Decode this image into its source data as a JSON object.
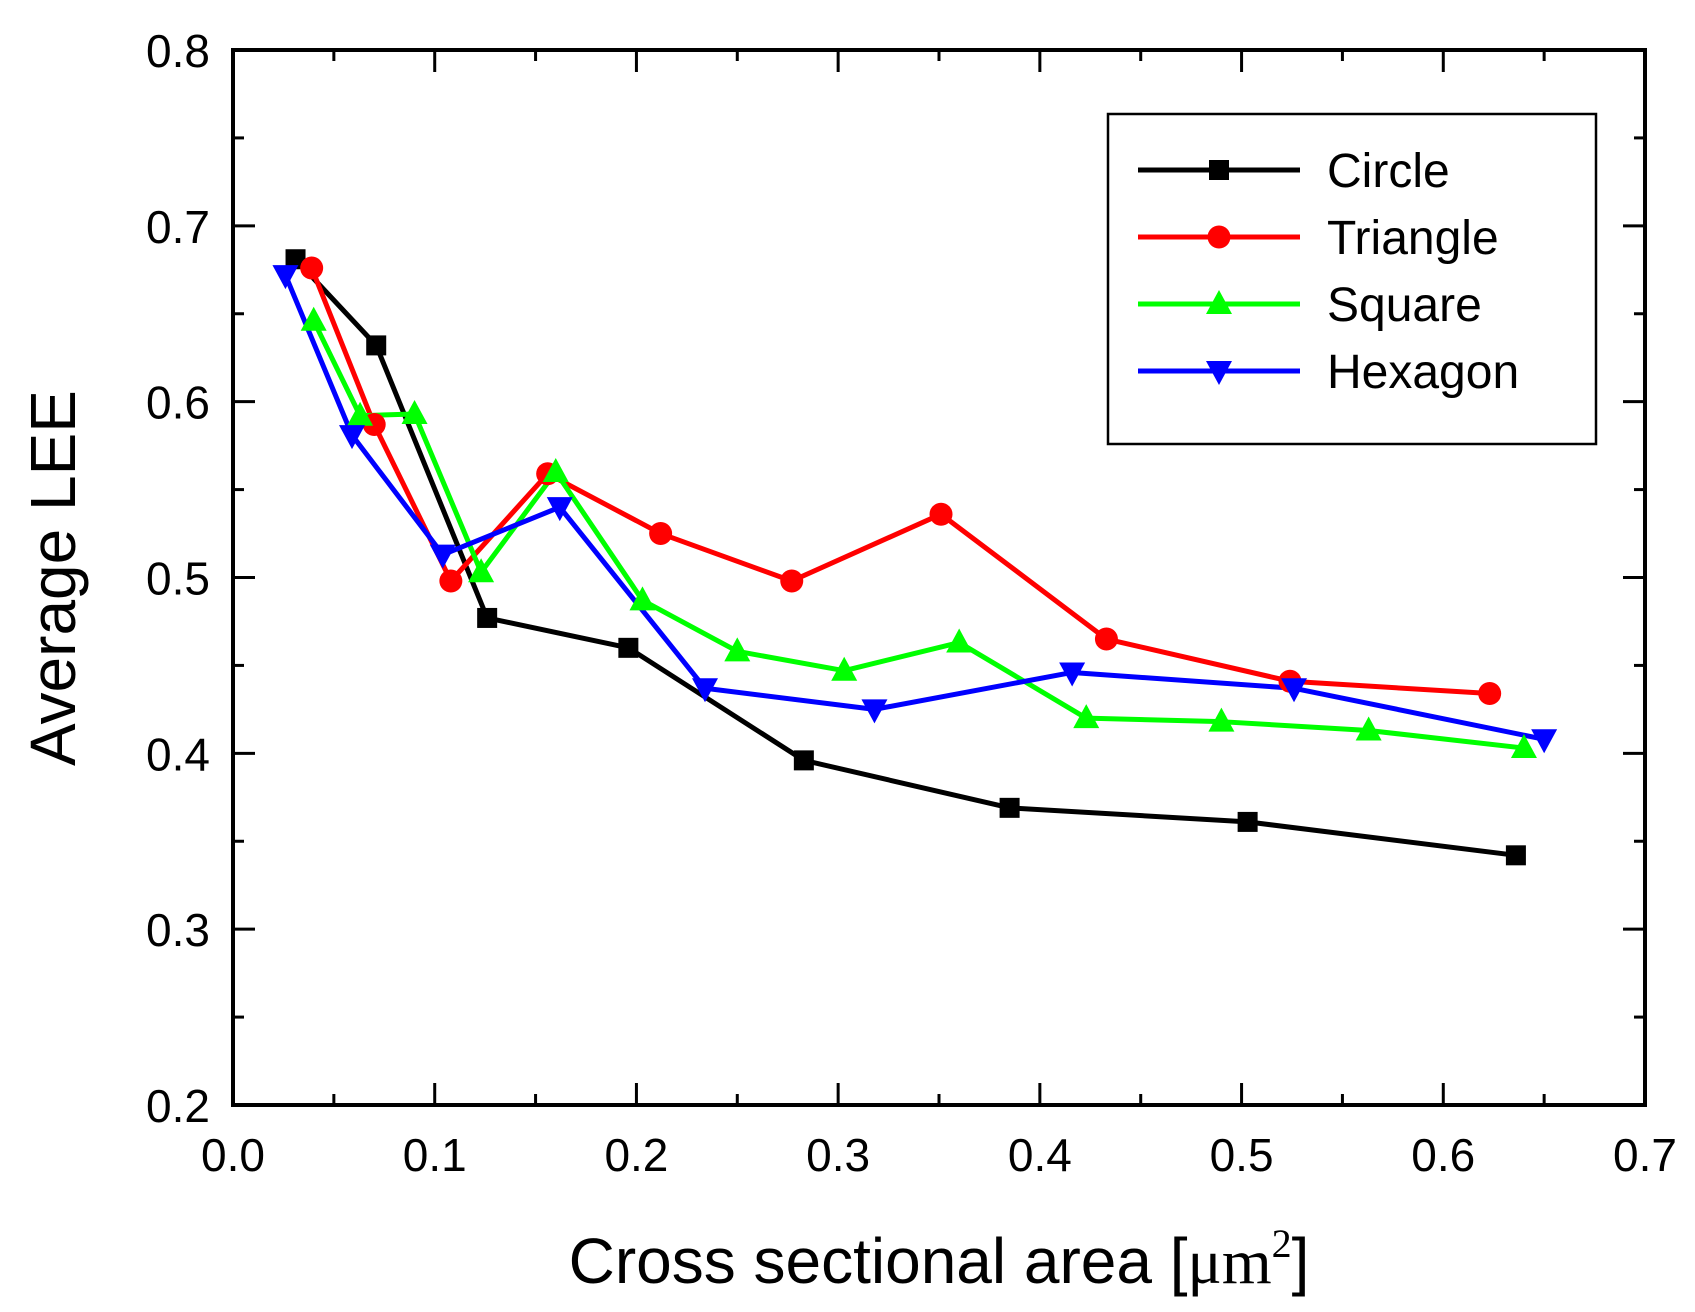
{
  "chart_data": {
    "type": "line",
    "title": "",
    "xlabel_main": "Cross sectional area [",
    "xlabel_unit": "μm",
    "xlabel_sup": "2",
    "xlabel_close": "]",
    "ylabel": "Average LEE",
    "xlim": [
      0.0,
      0.7
    ],
    "ylim": [
      0.2,
      0.8
    ],
    "xticks": [
      0.0,
      0.1,
      0.2,
      0.3,
      0.4,
      0.5,
      0.6,
      0.7
    ],
    "yticks": [
      0.2,
      0.3,
      0.4,
      0.5,
      0.6,
      0.7,
      0.8
    ],
    "xtick_labels": [
      "0.0",
      "0.1",
      "0.2",
      "0.3",
      "0.4",
      "0.5",
      "0.6",
      "0.7"
    ],
    "ytick_labels": [
      "0.2",
      "0.3",
      "0.4",
      "0.5",
      "0.6",
      "0.7",
      "0.8"
    ],
    "grid": false,
    "legend_position": "top-right",
    "series": [
      {
        "name": "Circle",
        "color": "#000000",
        "marker": "square",
        "x": [
          0.031,
          0.071,
          0.126,
          0.196,
          0.283,
          0.385,
          0.503,
          0.636
        ],
        "y": [
          0.681,
          0.632,
          0.477,
          0.46,
          0.396,
          0.369,
          0.361,
          0.342
        ]
      },
      {
        "name": "Triangle",
        "color": "#ff0000",
        "marker": "circle",
        "x": [
          0.039,
          0.07,
          0.108,
          0.156,
          0.212,
          0.277,
          0.351,
          0.433,
          0.524,
          0.623
        ],
        "y": [
          0.676,
          0.587,
          0.498,
          0.559,
          0.525,
          0.498,
          0.536,
          0.465,
          0.441,
          0.434
        ]
      },
      {
        "name": "Square",
        "color": "#00ff00",
        "marker": "triangle-up",
        "x": [
          0.04,
          0.063,
          0.09,
          0.123,
          0.16,
          0.203,
          0.25,
          0.303,
          0.36,
          0.423,
          0.49,
          0.563,
          0.64
        ],
        "y": [
          0.646,
          0.592,
          0.593,
          0.503,
          0.56,
          0.487,
          0.458,
          0.447,
          0.463,
          0.42,
          0.418,
          0.413,
          0.403
        ]
      },
      {
        "name": "Hexagon",
        "color": "#0000ff",
        "marker": "triangle-down",
        "x": [
          0.026,
          0.059,
          0.104,
          0.162,
          0.234,
          0.318,
          0.416,
          0.526,
          0.65
        ],
        "y": [
          0.672,
          0.581,
          0.513,
          0.54,
          0.437,
          0.425,
          0.446,
          0.437,
          0.408
        ]
      }
    ]
  }
}
